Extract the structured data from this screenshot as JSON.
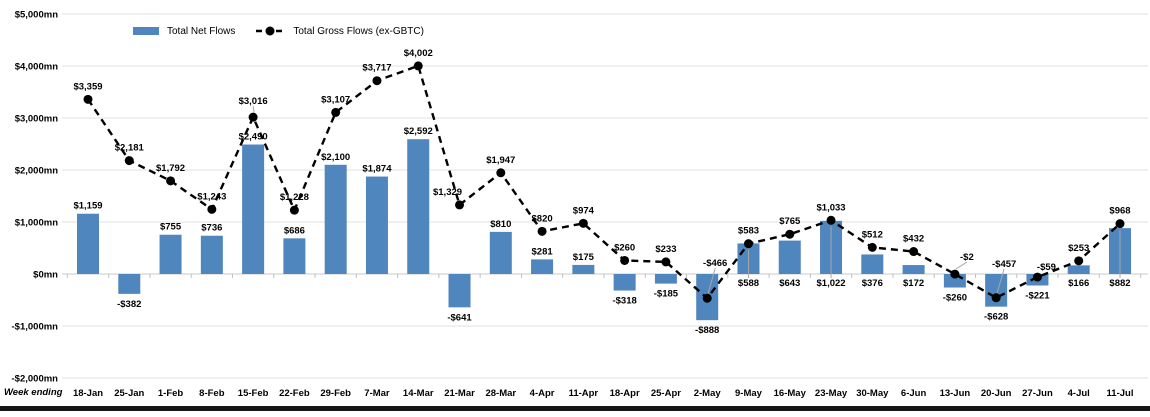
{
  "chart_data": {
    "type": "combo-bar-line",
    "title": "",
    "xlabel": "Week ending",
    "ylabel": "",
    "ylim": [
      -2000,
      5000
    ],
    "y_tick_step": 1000,
    "y_tick_labels": [
      "$5,000mn",
      "$4,000mn",
      "$3,000mn",
      "$2,000mn",
      "$1,000mn",
      "$0mn",
      "-$1,000mn",
      "-$2,000mn"
    ],
    "grid": true,
    "legend_position": "top",
    "categories": [
      "18-Jan",
      "25-Jan",
      "1-Feb",
      "8-Feb",
      "15-Feb",
      "22-Feb",
      "29-Feb",
      "7-Mar",
      "14-Mar",
      "21-Mar",
      "28-Mar",
      "4-Apr",
      "11-Apr",
      "18-Apr",
      "25-Apr",
      "2-May",
      "9-May",
      "16-May",
      "23-May",
      "30-May",
      "6-Jun",
      "13-Jun",
      "20-Jun",
      "27-Jun",
      "4-Jul",
      "11-Jul"
    ],
    "series": [
      {
        "name": "Total Net Flows",
        "type": "bar",
        "color": "#4f86bd",
        "values": [
          1159,
          -382,
          755,
          736,
          2490,
          686,
          2100,
          1874,
          2592,
          -641,
          810,
          281,
          175,
          -318,
          -185,
          -888,
          588,
          643,
          1022,
          376,
          172,
          -260,
          -628,
          -221,
          166,
          882
        ],
        "labels": [
          "$1,159",
          "-$382",
          "$755",
          "$736",
          "$2,490",
          "$686",
          "$2,100",
          "$1,874",
          "$2,592",
          "-$641",
          "$810",
          "$281",
          "$175",
          "-$318",
          "-$185",
          "-$888",
          "$588",
          "$643",
          "$1,022",
          "$376",
          "$172",
          "-$260",
          "-$628",
          "-$221",
          "$166",
          "$882"
        ]
      },
      {
        "name": "Total Gross Flows (ex-GBTC)",
        "type": "line",
        "color": "#000000",
        "dash": "7 5",
        "values": [
          3359,
          2181,
          1792,
          1243,
          3016,
          1228,
          3107,
          3717,
          4002,
          1329,
          1947,
          820,
          974,
          260,
          233,
          -466,
          583,
          765,
          1033,
          512,
          432,
          -2,
          -457,
          -59,
          253,
          968
        ],
        "labels": [
          "$3,359",
          "$2,181",
          "$1,792",
          "$1,243",
          "$3,016",
          "$1,228",
          "$3,107",
          "$3,717",
          "$4,002",
          "$1,329",
          "$1,947",
          "$820",
          "$974",
          "$260",
          "$233",
          "-$466",
          "$583",
          "$765",
          "$1,033",
          "$512",
          "$432",
          "-$2",
          "-$457",
          "-$59",
          "$253",
          "$968"
        ]
      }
    ],
    "colors": {
      "bar": "#4f86bd",
      "line": "#000000",
      "gridline": "#e0e0e0",
      "zero_line": "#c8c8c8",
      "axis_tick": "#c0c0c0",
      "leader_line": "#a8a8a8",
      "footer_rule": "#161616"
    },
    "layout": {
      "bar_label_below_axis": [
        16,
        17,
        18,
        19,
        20,
        24,
        25
      ],
      "bar_leader": [
        16,
        18,
        25
      ],
      "line_label_offsets": {
        "4": {
          "dx": 0,
          "dy": -3,
          "leader": true
        },
        "9": {
          "dx": -12,
          "dy": 0,
          "leader": false
        },
        "15": {
          "dx": 8,
          "dy": -22,
          "leader": true
        },
        "21": {
          "dx": 12,
          "dy": -4,
          "leader": true
        },
        "22": {
          "dx": 8,
          "dy": -21,
          "leader": true
        },
        "23": {
          "dx": 9,
          "dy": 3,
          "leader": false
        }
      }
    }
  }
}
